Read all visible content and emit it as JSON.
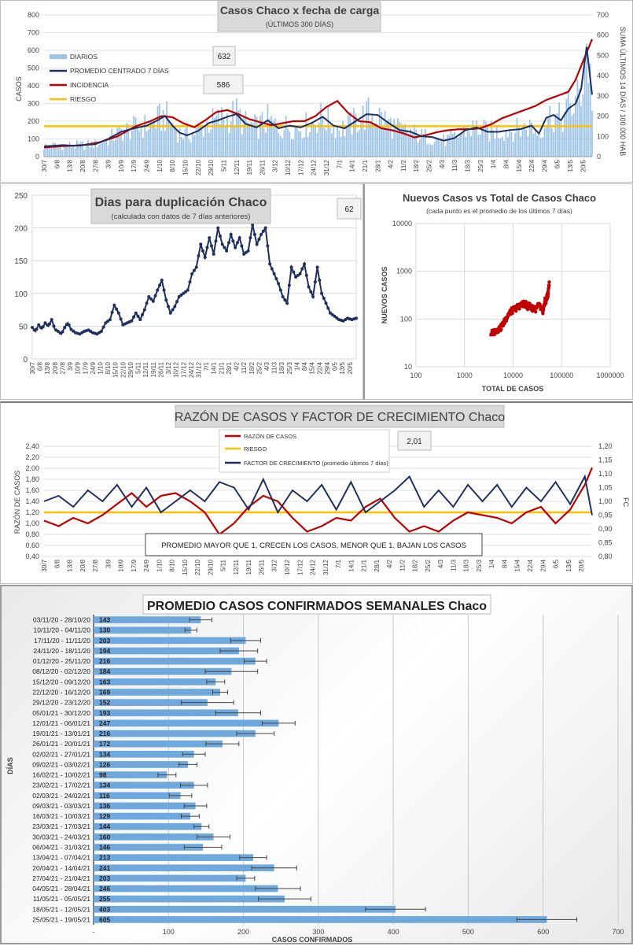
{
  "chart_data": [
    {
      "type": "bar",
      "title": "Casos  Chaco  x fecha de carga",
      "subtitle": "(ÚLTIMOS 300 DÍAS)",
      "ylabel": "CASOS",
      "y2label": "SUMA ÚLTIMOS 14 DÍAS / 100.000 HAB",
      "ylim": [
        0,
        800
      ],
      "y2lim": [
        0,
        700
      ],
      "yticks": [
        "0",
        "100",
        "200",
        "300",
        "400",
        "500",
        "600",
        "700",
        "800"
      ],
      "y2ticks": [
        "0",
        "100",
        "200",
        "300",
        "400",
        "500",
        "600",
        "700"
      ],
      "xticks": [
        "30/7",
        "6/8",
        "13/8",
        "20/8",
        "27/8",
        "3/9",
        "10/9",
        "17/9",
        "24/9",
        "1/10",
        "8/10",
        "15/10",
        "22/10",
        "29/10",
        "5/11",
        "12/11",
        "19/11",
        "26/11",
        "3/12",
        "10/12",
        "17/12",
        "24/12",
        "31/12",
        "7/1",
        "14/1",
        "21/1",
        "28/1",
        "4/2",
        "11/2",
        "18/2",
        "25/2",
        "4/3",
        "11/3",
        "18/3",
        "25/3",
        "1/4",
        "8/4",
        "15/4",
        "22/4",
        "29/4",
        "6/5",
        "13/5",
        "20/5"
      ],
      "legend": [
        "DIARIOS",
        "PROMEDIO CENTRADO 7 DÍAS",
        "INCIDENCIA",
        "RIESGO"
      ],
      "annotations": [
        "632",
        "586"
      ],
      "risk_level": 150,
      "series": [
        {
          "name": "PROMEDIO CENTRADO 7 DÍAS",
          "x": [
            0,
            6,
            10,
            16,
            22,
            28,
            35,
            42,
            50,
            56,
            62,
            66,
            70,
            74,
            78,
            84,
            90,
            95,
            100,
            105,
            110,
            116,
            122,
            128,
            134,
            140,
            146,
            152,
            158,
            164,
            170,
            176,
            182,
            188,
            194,
            200,
            206,
            212,
            218,
            224,
            230,
            236,
            242,
            248,
            254,
            260,
            266,
            270,
            274,
            278,
            282,
            286,
            290,
            293,
            296,
            299
          ],
          "values": [
            58,
            62,
            65,
            62,
            66,
            70,
            100,
            140,
            162,
            175,
            205,
            230,
            175,
            135,
            120,
            145,
            190,
            205,
            225,
            240,
            185,
            165,
            205,
            160,
            175,
            165,
            190,
            225,
            175,
            160,
            200,
            240,
            235,
            190,
            150,
            140,
            115,
            110,
            90,
            105,
            150,
            165,
            140,
            140,
            150,
            155,
            175,
            130,
            220,
            235,
            205,
            270,
            300,
            380,
            620,
            350
          ]
        },
        {
          "name": "INCIDENCIA",
          "x": [
            0,
            10,
            20,
            30,
            40,
            50,
            58,
            64,
            70,
            76,
            82,
            88,
            94,
            100,
            106,
            112,
            118,
            124,
            130,
            136,
            142,
            148,
            154,
            160,
            166,
            172,
            178,
            184,
            190,
            196,
            202,
            208,
            214,
            220,
            226,
            232,
            238,
            244,
            250,
            256,
            262,
            268,
            274,
            280,
            286,
            290,
            294,
            299
          ],
          "values": [
            45,
            52,
            55,
            70,
            100,
            150,
            175,
            200,
            195,
            165,
            145,
            180,
            220,
            230,
            210,
            185,
            170,
            155,
            165,
            175,
            175,
            200,
            245,
            275,
            215,
            175,
            170,
            140,
            130,
            115,
            95,
            105,
            120,
            130,
            135,
            135,
            140,
            160,
            190,
            210,
            230,
            250,
            280,
            300,
            320,
            380,
            470,
            580
          ]
        }
      ]
    },
    {
      "type": "line",
      "title": "Dias para duplicación Chaco",
      "subtitle": "(calculada con datos de 7 días anteriores)",
      "ylim": [
        0,
        250
      ],
      "yticks": [
        "0",
        "50",
        "100",
        "150",
        "200",
        "250"
      ],
      "xticks": [
        "30/7",
        "6/8",
        "13/8",
        "20/8",
        "27/8",
        "3/9",
        "10/9",
        "17/9",
        "24/9",
        "1/10",
        "8/10",
        "15/10",
        "22/10",
        "29/10",
        "5/11",
        "12/11",
        "19/11",
        "26/11",
        "3/12",
        "10/12",
        "17/12",
        "24/12",
        "31/12",
        "7/1",
        "14/1",
        "21/1",
        "28/1",
        "4/2",
        "11/2",
        "18/2",
        "25/2",
        "4/3",
        "11/3",
        "18/3",
        "25/3",
        "1/4",
        "8/4",
        "15/4",
        "22/4",
        "29/4",
        "6/5",
        "13/5",
        "20/5"
      ],
      "annotations": [
        "62"
      ],
      "series": [
        {
          "name": "",
          "x": [
            0,
            3,
            6,
            9,
            12,
            15,
            18,
            21,
            24,
            27,
            30,
            33,
            36,
            40,
            44,
            48,
            52,
            56,
            60,
            64,
            68,
            72,
            76,
            80,
            84,
            88,
            92,
            96,
            100,
            104,
            108,
            112,
            116,
            120,
            124,
            128,
            132,
            136,
            140,
            144,
            148,
            152,
            156,
            160,
            164,
            168,
            172,
            176,
            180,
            184,
            188,
            192,
            196,
            200,
            204,
            208,
            212,
            216,
            220,
            224,
            228,
            232,
            236,
            240,
            244,
            248,
            252,
            256,
            260,
            264,
            268,
            272,
            276,
            280,
            284,
            288,
            292,
            296,
            300
          ],
          "values": [
            48,
            42,
            52,
            46,
            55,
            50,
            60,
            45,
            42,
            38,
            48,
            55,
            45,
            40,
            38,
            42,
            44,
            40,
            38,
            42,
            55,
            60,
            82,
            70,
            52,
            55,
            58,
            70,
            60,
            75,
            95,
            88,
            105,
            120,
            90,
            70,
            80,
            95,
            100,
            105,
            130,
            140,
            175,
            155,
            185,
            160,
            200,
            175,
            165,
            190,
            170,
            185,
            160,
            165,
            205,
            175,
            190,
            200,
            145,
            130,
            115,
            95,
            85,
            140,
            125,
            130,
            145,
            110,
            95,
            140,
            100,
            85,
            70,
            65,
            60,
            58,
            62,
            60,
            62
          ]
        }
      ]
    },
    {
      "type": "scatter",
      "title": "Nuevos Casos vs Total de Casos Chaco",
      "subtitle": "(cada punto es el promedio de los últimos 7 días)",
      "xlabel": "TOTAL DE CASOS",
      "ylabel": "NUEVOS  CASOS",
      "xlim": [
        100,
        1000000
      ],
      "ylim": [
        10,
        10000
      ],
      "log_scale": true,
      "xticks": [
        "100",
        "1000",
        "10000",
        "100000",
        "1000000"
      ],
      "yticks": [
        "10",
        "100",
        "1000",
        "10000"
      ],
      "series": [
        {
          "name": "",
          "x": [
            3500,
            3800,
            4200,
            4600,
            5000,
            5500,
            6000,
            6500,
            7000,
            7500,
            8000,
            8800,
            9500,
            10500,
            11500,
            12500,
            13500,
            15000,
            16500,
            18000,
            20000,
            22000,
            24000,
            26000,
            28000,
            30000,
            32000,
            34000,
            36000,
            38000,
            40000,
            42000,
            44000,
            46000,
            48000,
            50000,
            52000,
            54000,
            56000
          ],
          "y": [
            50,
            52,
            55,
            60,
            62,
            65,
            75,
            85,
            100,
            110,
            125,
            140,
            150,
            160,
            170,
            180,
            190,
            200,
            210,
            205,
            185,
            195,
            165,
            175,
            170,
            160,
            180,
            200,
            175,
            160,
            140,
            160,
            200,
            250,
            230,
            300,
            320,
            450,
            600
          ]
        }
      ]
    },
    {
      "type": "line",
      "title": "RAZÓN DE CASOS Y FACTOR DE CRECIMIENTO Chaco",
      "ylabel": "RAZÓN DE CASOS",
      "y2label": "FC",
      "ylim": [
        0.4,
        2.4
      ],
      "y2lim": [
        0.8,
        1.2
      ],
      "yticks": [
        "0,40",
        "0,60",
        "0,80",
        "1,00",
        "1,20",
        "1,40",
        "1,60",
        "1,80",
        "2,00",
        "2,20",
        "2,40"
      ],
      "y2ticks": [
        "0,80",
        "0,85",
        "0,90",
        "0,95",
        "1,00",
        "1,05",
        "1,10",
        "1,15",
        "1,20"
      ],
      "xticks": [
        "30/7",
        "6/8",
        "13/8",
        "20/8",
        "27/8",
        "3/9",
        "10/9",
        "17/9",
        "24/9",
        "1/10",
        "8/10",
        "15/10",
        "22/10",
        "29/10",
        "5/11",
        "12/11",
        "19/11",
        "26/11",
        "3/12",
        "10/12",
        "17/12",
        "24/12",
        "31/12",
        "7/1",
        "14/1",
        "21/1",
        "28/1",
        "4/2",
        "11/2",
        "18/2",
        "25/2",
        "4/3",
        "11/3",
        "18/3",
        "25/3",
        "1/4",
        "8/4",
        "15/4",
        "22/4",
        "29/4",
        "6/5",
        "13/5",
        "20/5"
      ],
      "legend": [
        "RAZÓN DE CASOS",
        "RIESGO",
        "FACTOR DE CRECIMIENTO (promedio últimos 7 días)"
      ],
      "annotations": [
        "2,01",
        "PROMEDIO MAYOR QUE 1, CRECEN LOS CASOS, MENOR QUE 1, BAJAN LOS CASOS"
      ],
      "risk_level": 1.2,
      "series": [
        {
          "name": "RAZÓN DE CASOS",
          "x": [
            0,
            8,
            16,
            24,
            32,
            40,
            48,
            56,
            64,
            72,
            80,
            88,
            96,
            104,
            112,
            120,
            128,
            136,
            144,
            152,
            160,
            168,
            176,
            184,
            192,
            200,
            208,
            216,
            224,
            232,
            240,
            248,
            256,
            264,
            272,
            280,
            288,
            296,
            300
          ],
          "values": [
            1.05,
            0.95,
            1.1,
            1.0,
            1.15,
            1.35,
            1.55,
            1.3,
            1.5,
            1.55,
            1.4,
            1.2,
            0.8,
            1.0,
            1.3,
            1.5,
            1.4,
            1.1,
            0.85,
            0.95,
            1.1,
            1.05,
            1.3,
            1.45,
            1.1,
            0.85,
            0.95,
            0.85,
            1.05,
            1.2,
            1.15,
            1.1,
            1.0,
            1.2,
            1.3,
            1.0,
            1.25,
            1.7,
            2.01
          ]
        },
        {
          "name": "FACTOR DE CRECIMIENTO (promedio últimos 7 días)",
          "x": [
            0,
            8,
            16,
            24,
            32,
            40,
            48,
            56,
            64,
            72,
            80,
            88,
            96,
            104,
            112,
            120,
            128,
            136,
            144,
            152,
            160,
            168,
            176,
            184,
            192,
            200,
            208,
            216,
            224,
            232,
            240,
            248,
            256,
            264,
            272,
            280,
            288,
            296,
            300
          ],
          "values": [
            1.0,
            1.02,
            0.98,
            1.04,
            1.0,
            1.06,
            0.98,
            1.05,
            0.96,
            1.0,
            1.04,
            1.0,
            1.07,
            1.05,
            0.97,
            1.08,
            0.96,
            1.04,
            1.0,
            1.06,
            0.97,
            1.07,
            0.96,
            1.0,
            1.04,
            1.09,
            0.98,
            1.04,
            0.98,
            1.06,
            1.0,
            1.06,
            0.98,
            1.05,
            1.0,
            1.07,
            0.99,
            1.09,
            0.95
          ]
        }
      ]
    },
    {
      "type": "bar",
      "orientation": "horizontal",
      "title": "PROMEDIO CASOS CONFIRMADOS SEMANALES Chaco",
      "xlabel": "CASOS CONFIRMADOS",
      "ylabel": "DÍAS",
      "xlim": [
        0,
        700
      ],
      "xticks": [
        "-",
        "100",
        "200",
        "300",
        "400",
        "500",
        "600",
        "700"
      ],
      "categories": [
        "03/11/20 - 28/10/20",
        "10/11/20 - 04/11/20",
        "17/11/20 - 11/11/20",
        "24/11/20 - 18/11/20",
        "01/12/20 - 25/11/20",
        "08/12/20 - 02/12/20",
        "15/12/20 - 09/12/20",
        "22/12/20 - 16/12/20",
        "29/12/20 - 23/12/20",
        "05/01/21 - 30/12/20",
        "12/01/21 - 06/01/21",
        "19/01/21 - 13/01/21",
        "26/01/21 - 20/01/21",
        "02/02/21 - 27/01/21",
        "09/02/21 - 03/02/21",
        "16/02/21 - 10/02/21",
        "23/02/21 - 17/02/21",
        "02/03/21 - 24/02/21",
        "09/03/21 - 03/03/21",
        "16/03/21 - 10/03/21",
        "23/03/21 - 17/03/21",
        "30/03/21 - 24/03/21",
        "06/04/21 - 31/03/21",
        "13/04/21 - 07/04/21",
        "20/04/21 - 14/04/21",
        "27/04/21 - 21/04/21",
        "04/05/21 - 28/04/21",
        "11/05/21 - 05/05/21",
        "18/05/21 - 12/05/21",
        "25/05/21 - 19/05/21"
      ],
      "values": [
        143,
        130,
        203,
        194,
        216,
        184,
        163,
        169,
        152,
        193,
        247,
        216,
        172,
        134,
        126,
        98,
        134,
        116,
        136,
        129,
        144,
        160,
        146,
        213,
        241,
        203,
        246,
        255,
        403,
        605
      ],
      "error": [
        15,
        8,
        20,
        25,
        15,
        35,
        12,
        10,
        35,
        30,
        22,
        25,
        22,
        15,
        12,
        12,
        18,
        15,
        15,
        12,
        10,
        22,
        25,
        18,
        30,
        12,
        30,
        35,
        40,
        40
      ]
    }
  ]
}
